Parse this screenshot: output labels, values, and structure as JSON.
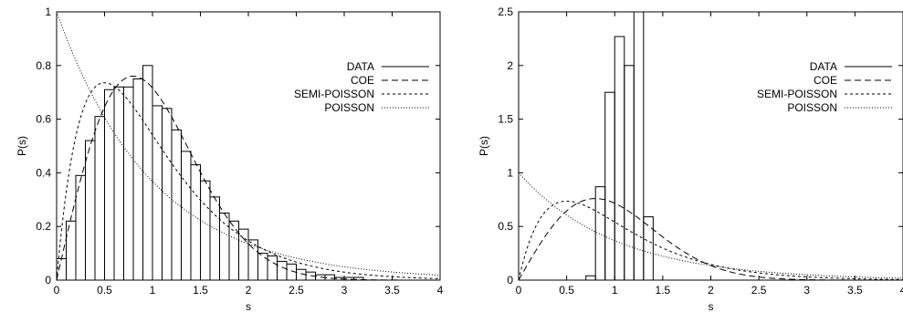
{
  "chart_data": [
    {
      "type": "bar",
      "xlabel": "s",
      "ylabel": "P(s)",
      "xlim": [
        0,
        4
      ],
      "ylim": [
        0,
        1
      ],
      "xticks": [
        "0",
        "0.5",
        "1",
        "1.5",
        "2",
        "2.5",
        "3",
        "3.5",
        "4"
      ],
      "yticks": [
        "0",
        "0.2",
        "0.4",
        "0.6",
        "0.8",
        "1"
      ],
      "bin_width": 0.1,
      "histogram": {
        "name": "DATA",
        "bin_start": [
          0.0,
          0.1,
          0.2,
          0.3,
          0.4,
          0.5,
          0.6,
          0.7,
          0.8,
          0.9,
          1.0,
          1.1,
          1.2,
          1.3,
          1.4,
          1.5,
          1.6,
          1.7,
          1.8,
          1.9,
          2.0,
          2.1,
          2.2,
          2.3,
          2.4,
          2.5,
          2.6,
          2.7,
          2.8,
          2.9,
          3.0,
          3.1
        ],
        "values": [
          0.08,
          0.22,
          0.39,
          0.52,
          0.61,
          0.71,
          0.72,
          0.72,
          0.75,
          0.8,
          0.65,
          0.64,
          0.56,
          0.48,
          0.43,
          0.37,
          0.31,
          0.25,
          0.22,
          0.19,
          0.15,
          0.1,
          0.09,
          0.07,
          0.06,
          0.04,
          0.03,
          0.02,
          0.02,
          0.01,
          0.01,
          0.01
        ]
      },
      "legend": [
        "DATA",
        "COE",
        "SEMI-POISSON",
        "POISSON"
      ],
      "legend_position": "top-right",
      "grid": false
    },
    {
      "type": "bar",
      "xlabel": "s",
      "ylabel": "P(s)",
      "xlim": [
        0,
        4
      ],
      "ylim": [
        0,
        2.5
      ],
      "xticks": [
        "0",
        "0.5",
        "1",
        "1.5",
        "2",
        "2.5",
        "3",
        "3.5",
        "4"
      ],
      "yticks": [
        "0",
        "0.5",
        "1",
        "1.5",
        "2",
        "2.5"
      ],
      "bin_width": 0.1,
      "histogram": {
        "name": "DATA",
        "bin_start": [
          0.7,
          0.8,
          0.9,
          1.0,
          1.1,
          1.2,
          1.3
        ],
        "values": [
          0.04,
          0.87,
          1.75,
          2.27,
          2.0,
          2.5,
          0.59
        ]
      },
      "legend": [
        "DATA",
        "COE",
        "SEMI-POISSON",
        "POISSON"
      ],
      "legend_position": "top-right",
      "grid": false
    }
  ]
}
